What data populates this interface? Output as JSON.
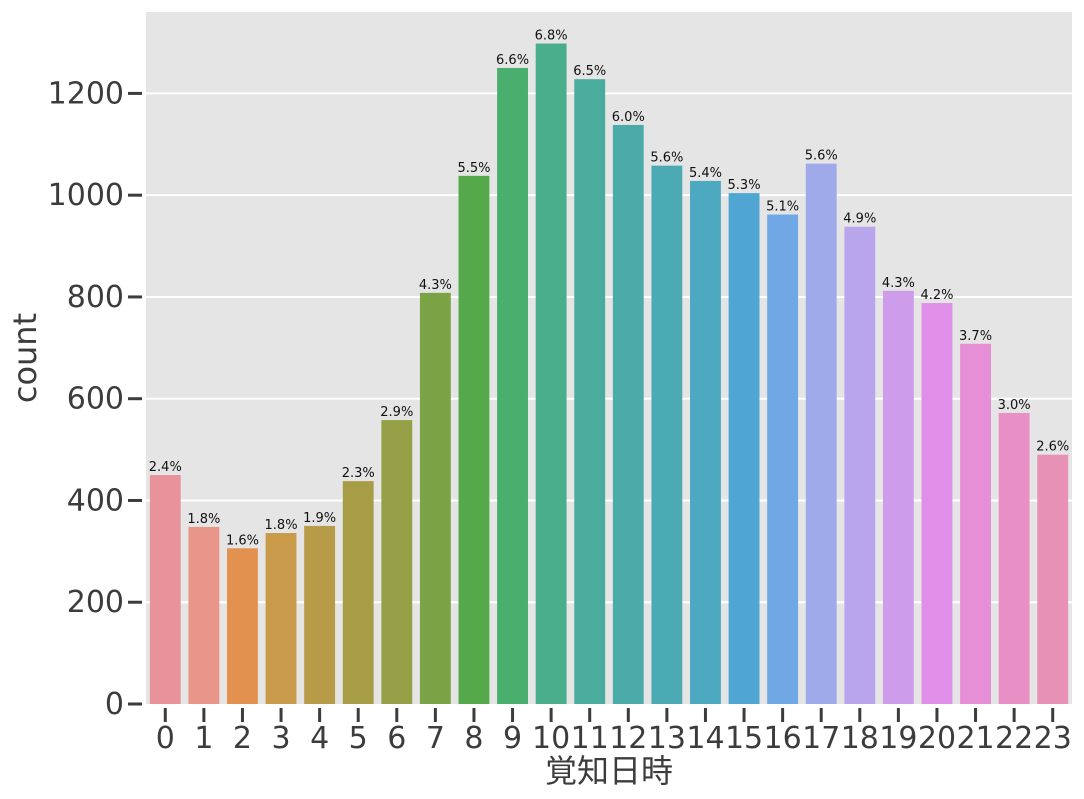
{
  "chart_data": {
    "type": "bar",
    "xlabel": "覚知日時",
    "ylabel": "count",
    "ylim": [
      0,
      1360
    ],
    "yticks": [
      0,
      200,
      400,
      600,
      800,
      1000,
      1200
    ],
    "grid": true,
    "background": "#e5e5e5",
    "categories": [
      "0",
      "1",
      "2",
      "3",
      "4",
      "5",
      "6",
      "7",
      "8",
      "9",
      "10",
      "11",
      "12",
      "13",
      "14",
      "15",
      "16",
      "17",
      "18",
      "19",
      "20",
      "21",
      "22",
      "23"
    ],
    "values": [
      450,
      348,
      306,
      336,
      350,
      438,
      558,
      808,
      1038,
      1250,
      1298,
      1228,
      1138,
      1058,
      1028,
      1004,
      962,
      1062,
      938,
      812,
      788,
      708,
      572,
      490
    ],
    "labels": [
      "2.4%",
      "1.8%",
      "1.6%",
      "1.8%",
      "1.9%",
      "2.3%",
      "2.9%",
      "4.3%",
      "5.5%",
      "6.6%",
      "6.8%",
      "6.5%",
      "6.0%",
      "5.6%",
      "5.4%",
      "5.3%",
      "5.1%",
      "5.6%",
      "4.9%",
      "4.3%",
      "4.2%",
      "3.7%",
      "3.0%",
      "2.6%"
    ],
    "colors": [
      "#e8929b",
      "#e8968a",
      "#e2914f",
      "#c99a4a",
      "#b89b48",
      "#a89d47",
      "#96a046",
      "#7aa346",
      "#56a94a",
      "#49ae6e",
      "#4aad8c",
      "#4aac9c",
      "#4bab a8",
      "#4baab4",
      "#4ca9bf",
      "#4fa6d3",
      "#6fa8e4",
      "#9eaae9",
      "#b8a5eb",
      "#cd9ceb",
      "#e08fe8",
      "#e68ed6",
      "#e88fc6",
      "#e891b6"
    ]
  }
}
